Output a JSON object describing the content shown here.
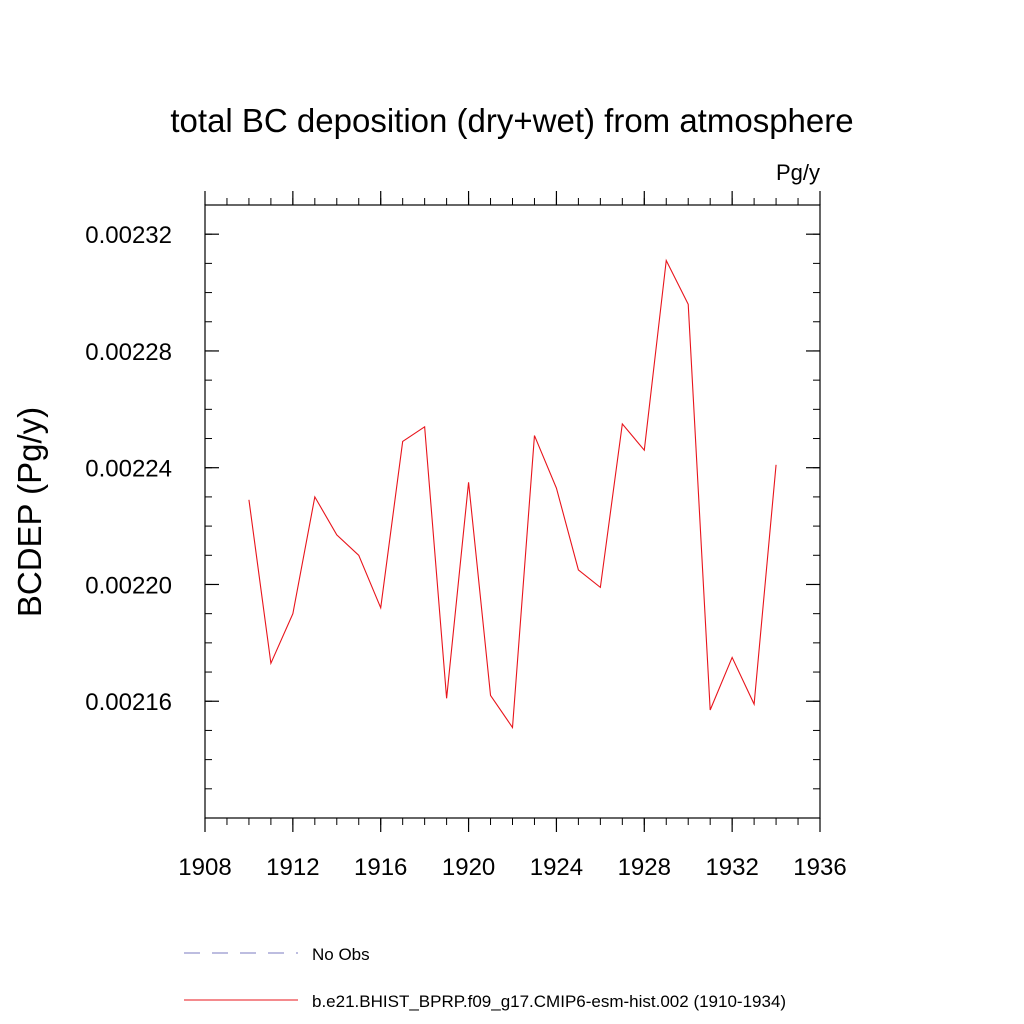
{
  "chart_data": {
    "type": "line",
    "title": "total BC deposition (dry+wet) from atmosphere",
    "units_label": "Pg/y",
    "ylabel": "BCDEP  (Pg/y)",
    "xlabel": "",
    "xlim": [
      1908,
      1936
    ],
    "ylim": [
      0.00212,
      0.00233
    ],
    "x_major_ticks": [
      1908,
      1912,
      1916,
      1920,
      1924,
      1928,
      1932,
      1936
    ],
    "x_minor_step": 1,
    "y_major_ticks": [
      0.00216,
      0.0022,
      0.00224,
      0.00228,
      0.00232
    ],
    "y_tick_labels": [
      "0.00216",
      "0.00220",
      "0.00224",
      "0.00228",
      "0.00232"
    ],
    "y_minor_step": 1e-05,
    "grid": false,
    "series": [
      {
        "name": "b.e21.BHIST_BPRP.f09_g17.CMIP6-esm-hist.002 (1910-1934)",
        "color": "#e8141b",
        "x": [
          1910,
          1911,
          1912,
          1913,
          1914,
          1915,
          1916,
          1917,
          1918,
          1919,
          1920,
          1921,
          1922,
          1923,
          1924,
          1925,
          1926,
          1927,
          1928,
          1929,
          1930,
          1931,
          1932,
          1933,
          1934
        ],
        "y": [
          0.002229,
          0.002173,
          0.00219,
          0.00223,
          0.002217,
          0.00221,
          0.002192,
          0.002249,
          0.002254,
          0.002161,
          0.002235,
          0.002162,
          0.002151,
          0.002251,
          0.002233,
          0.002205,
          0.002199,
          0.002255,
          0.002246,
          0.002311,
          0.002296,
          0.002157,
          0.002175,
          0.002159,
          0.002241
        ]
      }
    ],
    "legend": {
      "placement": "bottom-left",
      "entries": [
        {
          "label": "No Obs",
          "color": "#7b7bc0",
          "style": "dashed"
        },
        {
          "label": "b.e21.BHIST_BPRP.f09_g17.CMIP6-esm-hist.002 (1910-1934)",
          "color": "#e8141b",
          "style": "solid"
        }
      ]
    }
  }
}
